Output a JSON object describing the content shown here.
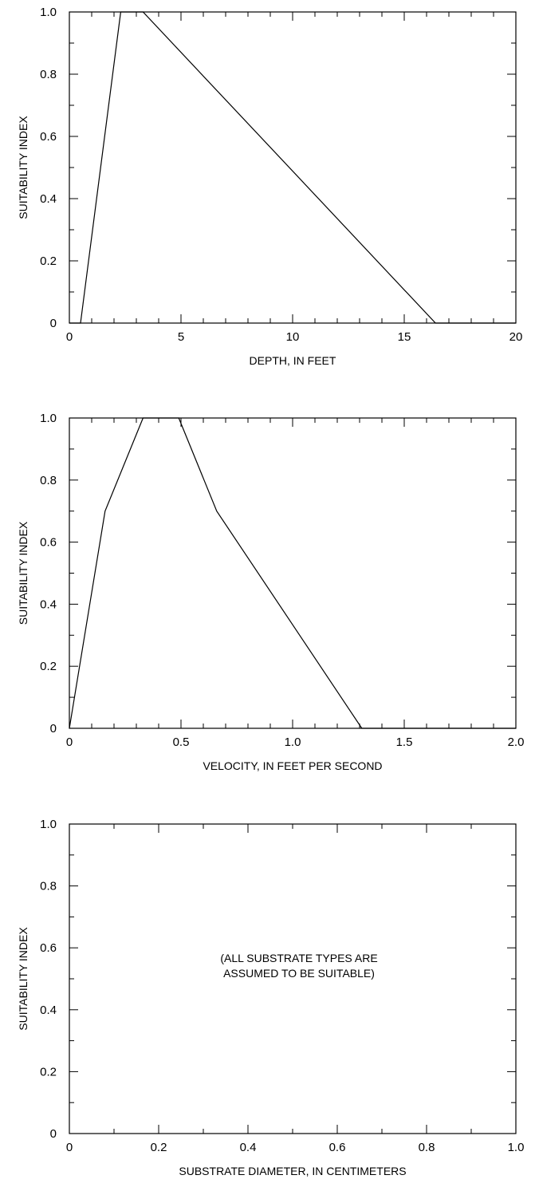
{
  "chart_data": [
    {
      "type": "line",
      "xlabel": "DEPTH, IN FEET",
      "ylabel": "SUITABILITY INDEX",
      "xlim": [
        0,
        20
      ],
      "ylim": [
        0,
        1
      ],
      "x_ticks": [
        0,
        5,
        10,
        15,
        20
      ],
      "x_tick_labels": [
        "0",
        "5",
        "10",
        "15",
        "20"
      ],
      "y_ticks": [
        0,
        0.2,
        0.4,
        0.6,
        0.8,
        1.0
      ],
      "y_tick_labels": [
        "0",
        "0.2",
        "0.4",
        "0.6",
        "0.8",
        "1.0"
      ],
      "grid": false,
      "series": [
        {
          "x": [
            0,
            0.5,
            2.3,
            3.3,
            16.4,
            20
          ],
          "y": [
            0,
            0,
            1.0,
            1.0,
            0,
            0
          ]
        }
      ]
    },
    {
      "type": "line",
      "xlabel": "VELOCITY, IN FEET PER SECOND",
      "ylabel": "SUITABILITY INDEX",
      "xlim": [
        0,
        2
      ],
      "ylim": [
        0,
        1
      ],
      "x_ticks": [
        0,
        0.5,
        1.0,
        1.5,
        2.0
      ],
      "x_tick_labels": [
        "0",
        "0.5",
        "1.0",
        "1.5",
        "2.0"
      ],
      "y_ticks": [
        0,
        0.2,
        0.4,
        0.6,
        0.8,
        1.0
      ],
      "y_tick_labels": [
        "0",
        "0.2",
        "0.4",
        "0.6",
        "0.8",
        "1.0"
      ],
      "grid": false,
      "series": [
        {
          "x": [
            0,
            0.16,
            0.33,
            0.49,
            0.66,
            1.31,
            2.0
          ],
          "y": [
            0,
            0.7,
            1.0,
            1.0,
            0.7,
            0,
            0
          ]
        }
      ]
    },
    {
      "type": "line",
      "xlabel": "SUBSTRATE DIAMETER, IN CENTIMETERS",
      "ylabel": "SUITABILITY INDEX",
      "xlim": [
        0,
        1
      ],
      "ylim": [
        0,
        1
      ],
      "x_ticks": [
        0,
        0.2,
        0.4,
        0.6,
        0.8,
        1.0
      ],
      "x_tick_labels": [
        "0",
        "0.2",
        "0.4",
        "0.6",
        "0.8",
        "1.0"
      ],
      "y_ticks": [
        0,
        0.2,
        0.4,
        0.6,
        0.8,
        1.0
      ],
      "y_tick_labels": [
        "0",
        "0.2",
        "0.4",
        "0.6",
        "0.8",
        "1.0"
      ],
      "grid": false,
      "annotation": [
        "(ALL SUBSTRATE TYPES ARE",
        "ASSUMED TO BE SUITABLE)"
      ],
      "series": []
    }
  ]
}
